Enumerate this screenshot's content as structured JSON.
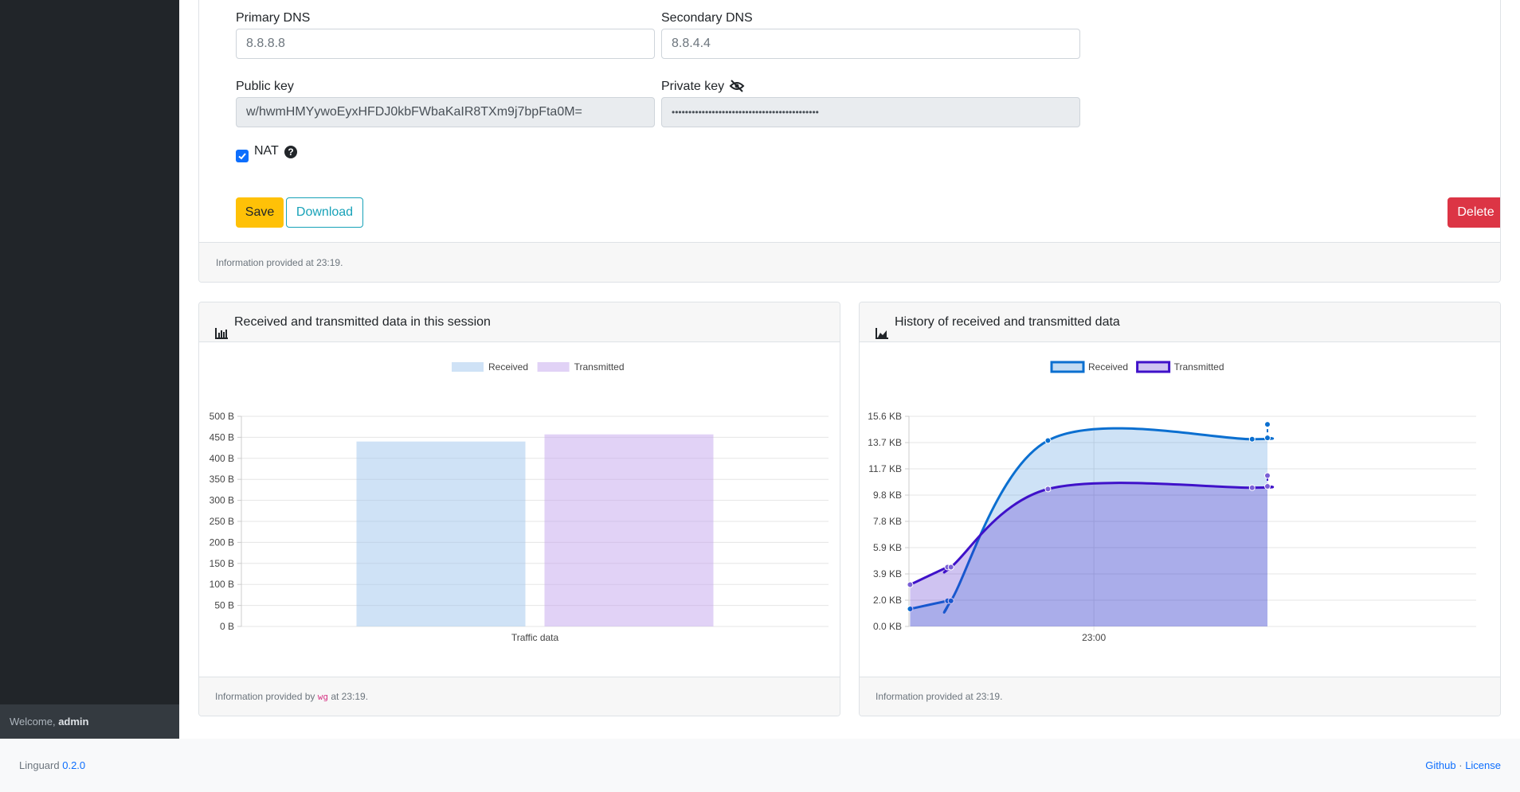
{
  "sidebar": {
    "welcome_prefix": "Welcome,",
    "user": "admin"
  },
  "form": {
    "primary_dns_label": "Primary DNS",
    "primary_dns_value": "8.8.8.8",
    "secondary_dns_label": "Secondary DNS",
    "secondary_dns_value": "8.8.4.4",
    "public_key_label": "Public key",
    "public_key_value": "w/hwmHMYywoEyxHFDJ0kbFWbaKaIR8TXm9j7bpFta0M=",
    "private_key_label": "Private key",
    "private_key_value": "••••••••••••••••••••••••••••••••••••••••••••",
    "nat_label": "NAT",
    "nat_checked": true,
    "help_icon": "question-circle-icon",
    "eye_icon": "eye-slash-icon"
  },
  "buttons": {
    "save": "Save",
    "download": "Download",
    "delete": "Delete"
  },
  "card_top_footer": "Information provided at 23:19.",
  "session_chart": {
    "title": "Received and transmitted data in this session",
    "footer_prefix": "Information provided by",
    "footer_code": "wg",
    "footer_suffix": "at 23:19.",
    "icon": "bar-chart-icon"
  },
  "history_chart": {
    "title": "History of received and transmitted data",
    "footer": "Information provided at 23:19.",
    "icon": "area-chart-icon"
  },
  "chart_data": [
    {
      "type": "bar",
      "categories": [
        "Traffic data"
      ],
      "series": [
        {
          "name": "Received",
          "values": [
            440
          ],
          "color": "#9fc5ee"
        },
        {
          "name": "Transmitted",
          "values": [
            457
          ],
          "color": "#c3a6ee"
        }
      ],
      "xlabel": "Traffic data",
      "ylim": [
        0,
        500
      ],
      "yticks": [
        "0 B",
        "50 B",
        "100 B",
        "150 B",
        "200 B",
        "250 B",
        "300 B",
        "350 B",
        "400 B",
        "450 B",
        "500 B"
      ],
      "legend": "top"
    },
    {
      "type": "area",
      "x_tick": "23:00",
      "series": [
        {
          "name": "Received",
          "values_kb": [
            1.3,
            1.9,
            1.9,
            13.8,
            13.9,
            14.0,
            15.0
          ],
          "color": "#0b6fd0"
        },
        {
          "name": "Transmitted",
          "values_kb": [
            3.1,
            4.4,
            4.4,
            10.2,
            10.3,
            10.4,
            11.2
          ],
          "color": "#3f11c9"
        }
      ],
      "ylim": [
        0,
        15.6
      ],
      "yticks": [
        "0.0 KB",
        "2.0 KB",
        "3.9 KB",
        "5.9 KB",
        "7.8 KB",
        "9.8 KB",
        "11.7 KB",
        "13.7 KB",
        "15.6 KB"
      ],
      "legend": "top"
    }
  ],
  "footer": {
    "brand": "Linguard",
    "version": "0.2.0",
    "github": "Github",
    "separator": "·",
    "license": "License"
  }
}
